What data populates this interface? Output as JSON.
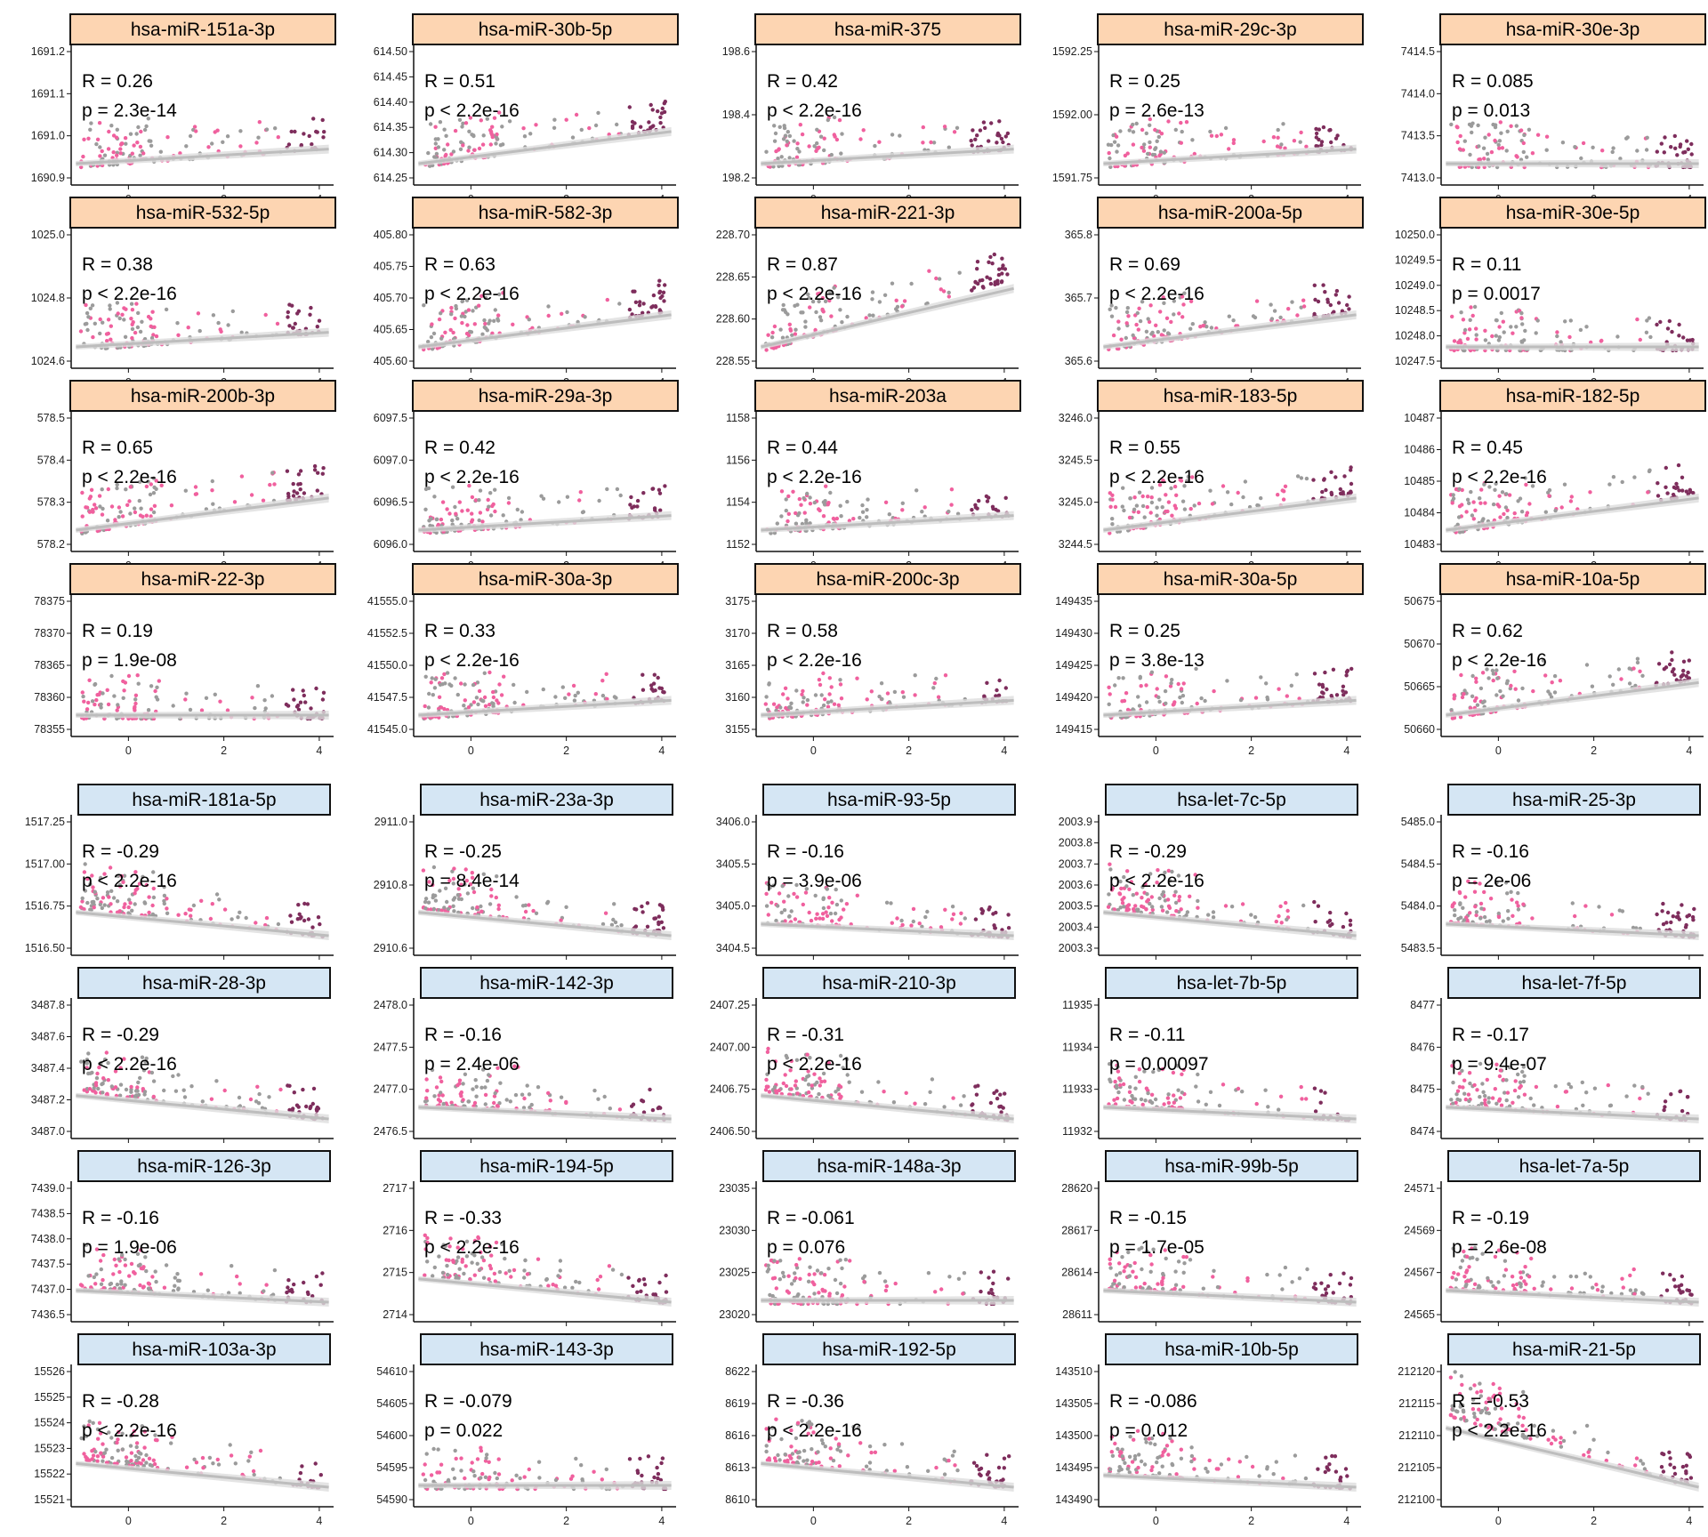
{
  "colors": {
    "strip_top": "#FDD5B2",
    "strip_bottom": "#D5E6F4",
    "point_gray": "#9B9B9B",
    "point_pink": "#F0609E",
    "point_maroon": "#7E2D5C",
    "trend_line": "#BDBDBD",
    "trend_band": "#DDDDDD"
  },
  "chart_data": [
    {
      "type": "scatter",
      "title": "hsa-miR-151a-3p",
      "group": "top",
      "R": "R = 0.26",
      "p": "p = 2.3e-14",
      "yticks": [
        "1691.2",
        "1691.1",
        "1691.0",
        "1690.9"
      ],
      "xticks": [
        "0",
        "2",
        "4"
      ],
      "trend": "up-weak"
    },
    {
      "type": "scatter",
      "title": "hsa-miR-30b-5p",
      "group": "top",
      "R": "R = 0.51",
      "p": "p < 2.2e-16",
      "yticks": [
        "614.50",
        "614.45",
        "614.40",
        "614.35",
        "614.30",
        "614.25"
      ],
      "xticks": [
        "0",
        "2",
        "4"
      ],
      "trend": "up"
    },
    {
      "type": "scatter",
      "title": "hsa-miR-375",
      "group": "top",
      "R": "R = 0.42",
      "p": "p < 2.2e-16",
      "yticks": [
        "198.6",
        "198.4",
        "198.2"
      ],
      "xticks": [
        "0",
        "2",
        "4"
      ],
      "trend": "up-weak"
    },
    {
      "type": "scatter",
      "title": "hsa-miR-29c-3p",
      "group": "top",
      "R": "R = 0.25",
      "p": "p = 2.6e-13",
      "yticks": [
        "1592.25",
        "1592.00",
        "1591.75"
      ],
      "xticks": [
        "0",
        "2",
        "4"
      ],
      "trend": "up-weak"
    },
    {
      "type": "scatter",
      "title": "hsa-miR-30e-3p",
      "group": "top",
      "R": "R = 0.085",
      "p": "p = 0.013",
      "yticks": [
        "7414.5",
        "7414.0",
        "7413.5",
        "7413.0"
      ],
      "xticks": [
        "0",
        "2",
        "4"
      ],
      "trend": "flat"
    },
    {
      "type": "scatter",
      "title": "hsa-miR-532-5p",
      "group": "top",
      "R": "R = 0.38",
      "p": "p < 2.2e-16",
      "yticks": [
        "1025.0",
        "1024.8",
        "1024.6"
      ],
      "xticks": [
        "0",
        "2",
        "4"
      ],
      "trend": "up-weak"
    },
    {
      "type": "scatter",
      "title": "hsa-miR-582-3p",
      "group": "top",
      "R": "R = 0.63",
      "p": "p < 2.2e-16",
      "yticks": [
        "405.80",
        "405.75",
        "405.70",
        "405.65",
        "405.60"
      ],
      "xticks": [
        "0",
        "2",
        "4"
      ],
      "trend": "up"
    },
    {
      "type": "scatter",
      "title": "hsa-miR-221-3p",
      "group": "top",
      "R": "R = 0.87",
      "p": "p < 2.2e-16",
      "yticks": [
        "228.70",
        "228.65",
        "228.60",
        "228.55"
      ],
      "xticks": [
        "0",
        "2",
        "4"
      ],
      "trend": "up-strong"
    },
    {
      "type": "scatter",
      "title": "hsa-miR-200a-5p",
      "group": "top",
      "R": "R = 0.69",
      "p": "p < 2.2e-16",
      "yticks": [
        "365.8",
        "365.7",
        "365.6"
      ],
      "xticks": [
        "0",
        "2",
        "4"
      ],
      "trend": "up"
    },
    {
      "type": "scatter",
      "title": "hsa-miR-30e-5p",
      "group": "top",
      "R": "R = 0.11",
      "p": "p = 0.0017",
      "yticks": [
        "10250.0",
        "10249.5",
        "10249.0",
        "10248.5",
        "10248.0",
        "10247.5"
      ],
      "xticks": [
        "0",
        "2",
        "4"
      ],
      "trend": "flat"
    },
    {
      "type": "scatter",
      "title": "hsa-miR-200b-3p",
      "group": "top",
      "R": "R = 0.65",
      "p": "p < 2.2e-16",
      "yticks": [
        "578.5",
        "578.4",
        "578.3",
        "578.2"
      ],
      "xticks": [
        "0",
        "2",
        "4"
      ],
      "trend": "up"
    },
    {
      "type": "scatter",
      "title": "hsa-miR-29a-3p",
      "group": "top",
      "R": "R = 0.42",
      "p": "p < 2.2e-16",
      "yticks": [
        "6097.5",
        "6097.0",
        "6096.5",
        "6096.0"
      ],
      "xticks": [
        "0",
        "2",
        "4"
      ],
      "trend": "up-weak"
    },
    {
      "type": "scatter",
      "title": "hsa-miR-203a",
      "group": "top",
      "R": "R = 0.44",
      "p": "p < 2.2e-16",
      "yticks": [
        "1158",
        "1156",
        "1154",
        "1152"
      ],
      "xticks": [
        "0",
        "2",
        "4"
      ],
      "trend": "up-weak"
    },
    {
      "type": "scatter",
      "title": "hsa-miR-183-5p",
      "group": "top",
      "R": "R = 0.55",
      "p": "p < 2.2e-16",
      "yticks": [
        "3246.0",
        "3245.5",
        "3245.0",
        "3244.5"
      ],
      "xticks": [
        "0",
        "2",
        "4"
      ],
      "trend": "up"
    },
    {
      "type": "scatter",
      "title": "hsa-miR-182-5p",
      "group": "top",
      "R": "R = 0.45",
      "p": "p < 2.2e-16",
      "yticks": [
        "10487",
        "10486",
        "10485",
        "10484",
        "10483"
      ],
      "xticks": [
        "0",
        "2",
        "4"
      ],
      "trend": "up"
    },
    {
      "type": "scatter",
      "title": "hsa-miR-22-3p",
      "group": "top",
      "R": "R = 0.19",
      "p": "p = 1.9e-08",
      "yticks": [
        "78375",
        "78370",
        "78365",
        "78360",
        "78355"
      ],
      "xticks": [
        "0",
        "2",
        "4"
      ],
      "trend": "flat"
    },
    {
      "type": "scatter",
      "title": "hsa-miR-30a-3p",
      "group": "top",
      "R": "R = 0.33",
      "p": "p < 2.2e-16",
      "yticks": [
        "41555.0",
        "41552.5",
        "41550.0",
        "41547.5",
        "41545.0"
      ],
      "xticks": [
        "0",
        "2",
        "4"
      ],
      "trend": "up-weak"
    },
    {
      "type": "scatter",
      "title": "hsa-miR-200c-3p",
      "group": "top",
      "R": "R = 0.58",
      "p": "p < 2.2e-16",
      "yticks": [
        "3175",
        "3170",
        "3165",
        "3160",
        "3155"
      ],
      "xticks": [
        "0",
        "2",
        "4"
      ],
      "trend": "up-weak"
    },
    {
      "type": "scatter",
      "title": "hsa-miR-30a-5p",
      "group": "top",
      "R": "R = 0.25",
      "p": "p = 3.8e-13",
      "yticks": [
        "149435",
        "149430",
        "149425",
        "149420",
        "149415"
      ],
      "xticks": [
        "0",
        "2",
        "4"
      ],
      "trend": "up-weak"
    },
    {
      "type": "scatter",
      "title": "hsa-miR-10a-5p",
      "group": "top",
      "R": "R = 0.62",
      "p": "p < 2.2e-16",
      "yticks": [
        "50675",
        "50670",
        "50665",
        "50660"
      ],
      "xticks": [
        "0",
        "2",
        "4"
      ],
      "trend": "up"
    },
    {
      "type": "scatter",
      "title": "hsa-miR-181a-5p",
      "group": "bottom",
      "R": "R = -0.29",
      "p": "p < 2.2e-16",
      "yticks": [
        "1517.25",
        "1517.00",
        "1516.75",
        "1516.50"
      ],
      "xticks": [],
      "trend": "down"
    },
    {
      "type": "scatter",
      "title": "hsa-miR-23a-3p",
      "group": "bottom",
      "R": "R = -0.25",
      "p": "p = 8.4e-14",
      "yticks": [
        "2911.0",
        "2910.8",
        "2910.6"
      ],
      "xticks": [],
      "trend": "down"
    },
    {
      "type": "scatter",
      "title": "hsa-miR-93-5p",
      "group": "bottom",
      "R": "R = -0.16",
      "p": "p = 3.9e-06",
      "yticks": [
        "3406.0",
        "3405.5",
        "3405.0",
        "3404.5"
      ],
      "xticks": [],
      "trend": "down-weak"
    },
    {
      "type": "scatter",
      "title": "hsa-let-7c-5p",
      "group": "bottom",
      "R": "R = -0.29",
      "p": "p < 2.2e-16",
      "yticks": [
        "2003.9",
        "2003.8",
        "2003.7",
        "2003.6",
        "2003.5",
        "2003.4",
        "2003.3"
      ],
      "xticks": [],
      "trend": "down"
    },
    {
      "type": "scatter",
      "title": "hsa-miR-25-3p",
      "group": "bottom",
      "R": "R = -0.16",
      "p": "p = 2e-06",
      "yticks": [
        "5485.0",
        "5484.5",
        "5484.0",
        "5483.5"
      ],
      "xticks": [],
      "trend": "down-weak"
    },
    {
      "type": "scatter",
      "title": "hsa-miR-28-3p",
      "group": "bottom",
      "R": "R = -0.29",
      "p": "p < 2.2e-16",
      "yticks": [
        "3487.8",
        "3487.6",
        "3487.4",
        "3487.2",
        "3487.0"
      ],
      "xticks": [],
      "trend": "down"
    },
    {
      "type": "scatter",
      "title": "hsa-miR-142-3p",
      "group": "bottom",
      "R": "R = -0.16",
      "p": "p = 2.4e-06",
      "yticks": [
        "2478.0",
        "2477.5",
        "2477.0",
        "2476.5"
      ],
      "xticks": [],
      "trend": "down-weak"
    },
    {
      "type": "scatter",
      "title": "hsa-miR-210-3p",
      "group": "bottom",
      "R": "R = -0.31",
      "p": "p < 2.2e-16",
      "yticks": [
        "2407.25",
        "2407.00",
        "2406.75",
        "2406.50"
      ],
      "xticks": [],
      "trend": "down"
    },
    {
      "type": "scatter",
      "title": "hsa-let-7b-5p",
      "group": "bottom",
      "R": "R = -0.11",
      "p": "p = 0.00097",
      "yticks": [
        "11935",
        "11934",
        "11933",
        "11932"
      ],
      "xticks": [],
      "trend": "down-weak"
    },
    {
      "type": "scatter",
      "title": "hsa-let-7f-5p",
      "group": "bottom",
      "R": "R = -0.17",
      "p": "p = 9.4e-07",
      "yticks": [
        "8477",
        "8476",
        "8475",
        "8474"
      ],
      "xticks": [],
      "trend": "down-weak"
    },
    {
      "type": "scatter",
      "title": "hsa-miR-126-3p",
      "group": "bottom",
      "R": "R = -0.16",
      "p": "p = 1.9e-06",
      "yticks": [
        "7439.0",
        "7438.5",
        "7438.0",
        "7437.5",
        "7437.0",
        "7436.5"
      ],
      "xticks": [],
      "trend": "down-weak"
    },
    {
      "type": "scatter",
      "title": "hsa-miR-194-5p",
      "group": "bottom",
      "R": "R = -0.33",
      "p": "p < 2.2e-16",
      "yticks": [
        "2717",
        "2716",
        "2715",
        "2714"
      ],
      "xticks": [],
      "trend": "down"
    },
    {
      "type": "scatter",
      "title": "hsa-miR-148a-3p",
      "group": "bottom",
      "R": "R = -0.061",
      "p": "p = 0.076",
      "yticks": [
        "23035",
        "23030",
        "23025",
        "23020"
      ],
      "xticks": [],
      "trend": "flat"
    },
    {
      "type": "scatter",
      "title": "hsa-miR-99b-5p",
      "group": "bottom",
      "R": "R = -0.15",
      "p": "p = 1.7e-05",
      "yticks": [
        "28620",
        "28617",
        "28614",
        "28611"
      ],
      "xticks": [],
      "trend": "down-weak"
    },
    {
      "type": "scatter",
      "title": "hsa-let-7a-5p",
      "group": "bottom",
      "R": "R = -0.19",
      "p": "p = 2.6e-08",
      "yticks": [
        "24571",
        "24569",
        "24567",
        "24565"
      ],
      "xticks": [],
      "trend": "down-weak"
    },
    {
      "type": "scatter",
      "title": "hsa-miR-103a-3p",
      "group": "bottom",
      "R": "R = -0.28",
      "p": "p < 2.2e-16",
      "yticks": [
        "15526",
        "15525",
        "15524",
        "15523",
        "15522",
        "15521"
      ],
      "xticks": [
        "0",
        "2",
        "4"
      ],
      "trend": "down"
    },
    {
      "type": "scatter",
      "title": "hsa-miR-143-3p",
      "group": "bottom",
      "R": "R = -0.079",
      "p": "p = 0.022",
      "yticks": [
        "54610",
        "54605",
        "54600",
        "54595",
        "54590"
      ],
      "xticks": [
        "0",
        "2",
        "4"
      ],
      "trend": "flat"
    },
    {
      "type": "scatter",
      "title": "hsa-miR-192-5p",
      "group": "bottom",
      "R": "R = -0.36",
      "p": "p < 2.2e-16",
      "yticks": [
        "8622",
        "8619",
        "8616",
        "8613",
        "8610"
      ],
      "xticks": [
        "0",
        "2",
        "4"
      ],
      "trend": "down"
    },
    {
      "type": "scatter",
      "title": "hsa-miR-10b-5p",
      "group": "bottom",
      "R": "R = -0.086",
      "p": "p = 0.012",
      "yticks": [
        "143510",
        "143505",
        "143500",
        "143495",
        "143490"
      ],
      "xticks": [
        "0",
        "2",
        "4"
      ],
      "trend": "down-weak"
    },
    {
      "type": "scatter",
      "title": "hsa-miR-21-5p",
      "group": "bottom",
      "R": "R = -0.53",
      "p": "p < 2.2e-16",
      "yticks": [
        "212120",
        "212115",
        "212110",
        "212105",
        "212100"
      ],
      "xticks": [
        "0",
        "2",
        "4"
      ],
      "trend": "down-strong"
    }
  ]
}
